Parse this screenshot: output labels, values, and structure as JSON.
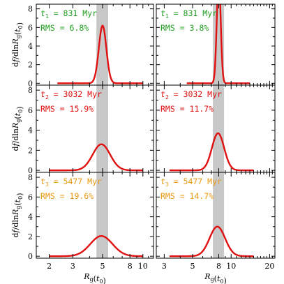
{
  "figure": {
    "ylabel": "df/dlnR_g(t_0)",
    "xlabel": "R_g(t_0)",
    "colors": {
      "row1": "#22a022",
      "row2": "#e01010",
      "row3": "#e89a10",
      "curve": "#e01010",
      "band": "#c8c8c8"
    }
  },
  "chart_data": [
    {
      "type": "line",
      "panel": "row1-left",
      "annotation": {
        "time_label": "t",
        "time_sub": "1",
        "time_value": "= 831 Myr",
        "rms": "RMS = 6.8%"
      },
      "xscale": "log",
      "xlim": [
        1.6,
        12
      ],
      "ylim": [
        -0.2,
        8.5
      ],
      "xticks": [
        2,
        3,
        5,
        8,
        10
      ],
      "yticks": [
        0,
        2,
        4,
        6,
        8
      ],
      "band": [
        4.5,
        5.5
      ],
      "series": [
        {
          "mu": 5.0,
          "sigma_ln": 0.065,
          "peak": 6.2,
          "x_range": [
            2.3,
            10
          ]
        }
      ]
    },
    {
      "type": "line",
      "panel": "row1-right",
      "annotation": {
        "time_label": "t",
        "time_sub": "1",
        "time_value": "= 831 Myr",
        "rms": "RMS = 3.8%"
      },
      "xscale": "log",
      "xlim": [
        2.6,
        22
      ],
      "ylim": [
        -0.2,
        8.5
      ],
      "xticks": [
        3,
        5,
        8,
        10,
        20
      ],
      "yticks": [
        0,
        2,
        4,
        6,
        8
      ],
      "band": [
        7.2,
        8.8
      ],
      "series": [
        {
          "mu": 8.0,
          "sigma_ln": 0.035,
          "peak": 11.5,
          "x_range": [
            4.5,
            14
          ]
        }
      ]
    },
    {
      "type": "line",
      "panel": "row2-left",
      "annotation": {
        "time_label": "t",
        "time_sub": "2",
        "time_value": "= 3032 Myr",
        "rms": "RMS = 15.9%"
      },
      "xscale": "log",
      "xlim": [
        1.6,
        12
      ],
      "ylim": [
        -0.2,
        8.5
      ],
      "xticks": [
        2,
        3,
        5,
        8,
        10
      ],
      "yticks": [
        0,
        2,
        4,
        6,
        8
      ],
      "band": [
        4.5,
        5.5
      ],
      "series": [
        {
          "mu": 4.9,
          "sigma_ln": 0.15,
          "peak": 2.6,
          "x_range": [
            2.0,
            10
          ]
        }
      ]
    },
    {
      "type": "line",
      "panel": "row2-right",
      "annotation": {
        "time_label": "t",
        "time_sub": "2",
        "time_value": "= 3032 Myr",
        "rms": "RMS = 11.7%"
      },
      "xscale": "log",
      "xlim": [
        2.6,
        22
      ],
      "ylim": [
        -0.2,
        8.5
      ],
      "xticks": [
        3,
        5,
        8,
        10,
        20
      ],
      "yticks": [
        0,
        2,
        4,
        6,
        8
      ],
      "band": [
        7.2,
        8.8
      ],
      "series": [
        {
          "mu": 7.9,
          "sigma_ln": 0.11,
          "peak": 3.7,
          "x_range": [
            3.3,
            15
          ]
        }
      ]
    },
    {
      "type": "line",
      "panel": "row3-left",
      "annotation": {
        "time_label": "t",
        "time_sub": "3",
        "time_value": "= 5477 Myr",
        "rms": "RMS = 19.6%"
      },
      "xscale": "log",
      "xlim": [
        1.6,
        12
      ],
      "ylim": [
        -0.2,
        8.5
      ],
      "xticks": [
        2,
        3,
        5,
        8,
        10
      ],
      "yticks": [
        0,
        2,
        4,
        6,
        8
      ],
      "band": [
        4.5,
        5.5
      ],
      "series": [
        {
          "mu": 4.9,
          "sigma_ln": 0.19,
          "peak": 2.05,
          "x_range": [
            2.0,
            10
          ]
        }
      ]
    },
    {
      "type": "line",
      "panel": "row3-right",
      "annotation": {
        "time_label": "t",
        "time_sub": "3",
        "time_value": "= 5477 Myr",
        "rms": "RMS = 14.7%"
      },
      "xscale": "log",
      "xlim": [
        2.6,
        22
      ],
      "ylim": [
        -0.2,
        8.5
      ],
      "xticks": [
        3,
        5,
        8,
        10,
        20
      ],
      "yticks": [
        0,
        2,
        4,
        6,
        8
      ],
      "band": [
        7.2,
        8.8
      ],
      "series": [
        {
          "mu": 7.8,
          "sigma_ln": 0.14,
          "peak": 3.0,
          "x_range": [
            3.3,
            15
          ]
        }
      ]
    }
  ]
}
